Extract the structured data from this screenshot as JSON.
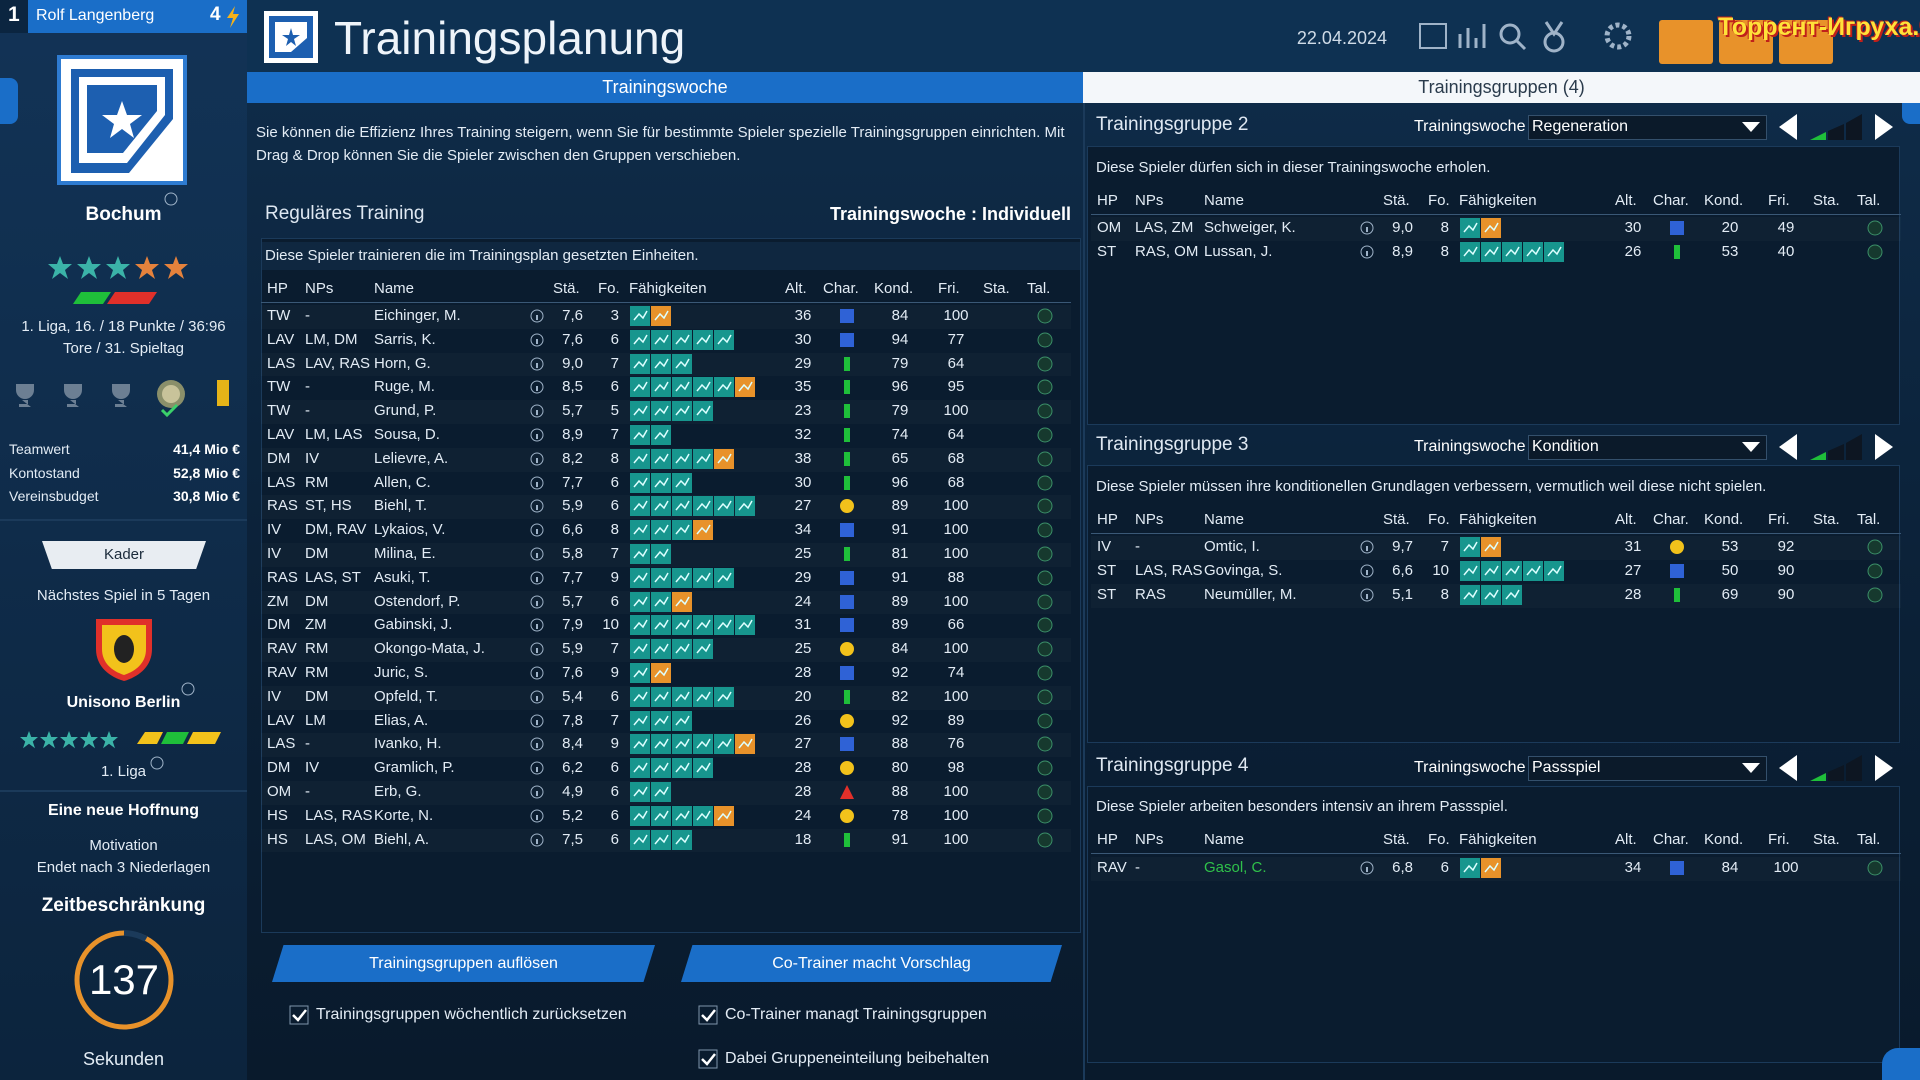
{
  "sidebar": {
    "rank": "1",
    "manager": "Rolf Langenberg",
    "points": "4",
    "club": "Bochum",
    "league_line": "1. Liga, 16. / 18 Punkte / 36:96",
    "league_line2": "Tore / 31. Spieltag",
    "finances": [
      [
        "Teamwert",
        "41,4 Mio €"
      ],
      [
        "Kontostand",
        "52,8 Mio €"
      ],
      [
        "Vereinsbudget",
        "30,8 Mio €"
      ]
    ],
    "squad_button": "Kader",
    "next_match": "Nächstes Spiel in 5 Tagen",
    "opponent": "Unisono Berlin",
    "opponent_league": "1. Liga",
    "goal_title": "Eine neue Hoffnung",
    "goal_label": "Motivation",
    "goal_end": "Endet nach 3 Niederlagen",
    "timer_title": "Zeitbeschränkung",
    "timer_value": 137,
    "timer_unit": "Sekunden"
  },
  "header": {
    "title": "Trainingsplanung",
    "date": "22.04.2024",
    "watermark": "Торрент-Игруха.Орг"
  },
  "tabs": [
    "Trainingswoche",
    "Trainingsgruppen (4)"
  ],
  "columns": [
    "HP",
    "NPs",
    "Name",
    "Stä.",
    "Fo.",
    "Fähigkeiten",
    "Alt.",
    "Char.",
    "Kond.",
    "Fri.",
    "Sta.",
    "Tal."
  ],
  "regular": {
    "intro": "Sie können die Effizienz Ihres Training steigern, wenn Sie für bestimmte Spieler spezielle Trainingsgruppen einrichten. Mit Drag & Drop können Sie die Spieler zwischen den Gruppen verschieben.",
    "title": "Reguläres Training",
    "week_label": "Trainingswoche : Individuell",
    "description": "Diese Spieler trainieren die im Trainingsplan gesetzten Einheiten.",
    "rows": [
      [
        "TW",
        "-",
        "Eichinger, M.",
        "7,6",
        3,
        36,
        84,
        100
      ],
      [
        "LAV",
        "LM, DM",
        "Sarris, K.",
        "7,6",
        6,
        30,
        94,
        77
      ],
      [
        "LAS",
        "LAV, RAS",
        "Horn, G.",
        "9,0",
        7,
        29,
        79,
        64
      ],
      [
        "TW",
        "-",
        "Ruge, M.",
        "8,5",
        6,
        35,
        96,
        95
      ],
      [
        "TW",
        "-",
        "Grund, P.",
        "5,7",
        5,
        23,
        79,
        100
      ],
      [
        "LAV",
        "LM, LAS",
        "Sousa, D.",
        "8,9",
        7,
        32,
        74,
        64
      ],
      [
        "DM",
        "IV",
        "Lelievre, A.",
        "8,2",
        8,
        38,
        65,
        68
      ],
      [
        "LAS",
        "RM",
        "Allen, C.",
        "7,7",
        6,
        30,
        96,
        68
      ],
      [
        "RAS",
        "ST, HS",
        "Biehl, T.",
        "5,9",
        6,
        27,
        89,
        100
      ],
      [
        "IV",
        "DM, RAV",
        "Lykaios, V.",
        "6,6",
        8,
        34,
        91,
        100
      ],
      [
        "IV",
        "DM",
        "Milina, E.",
        "5,8",
        7,
        25,
        81,
        100
      ],
      [
        "RAS",
        "LAS, ST",
        "Asuki, T.",
        "7,7",
        9,
        29,
        91,
        88
      ],
      [
        "ZM",
        "DM",
        "Ostendorf, P.",
        "5,7",
        6,
        24,
        89,
        100
      ],
      [
        "DM",
        "ZM",
        "Gabinski, J.",
        "7,9",
        10,
        31,
        89,
        66
      ],
      [
        "RAV",
        "RM",
        "Okongo-Mata, J.",
        "5,9",
        7,
        25,
        84,
        100
      ],
      [
        "RAV",
        "RM",
        "Juric, S.",
        "7,6",
        9,
        28,
        92,
        74
      ],
      [
        "IV",
        "DM",
        "Opfeld, T.",
        "5,4",
        6,
        20,
        82,
        100
      ],
      [
        "LAV",
        "LM",
        "Elias, A.",
        "7,8",
        7,
        26,
        92,
        89
      ],
      [
        "LAS",
        "-",
        "Ivanko, H.",
        "8,4",
        9,
        27,
        88,
        76
      ],
      [
        "DM",
        "IV",
        "Gramlich, P.",
        "6,2",
        6,
        28,
        80,
        98
      ],
      [
        "OM",
        "-",
        "Erb, G.",
        "4,9",
        6,
        28,
        88,
        100
      ],
      [
        "HS",
        "LAS, RAS",
        "Korte, N.",
        "5,2",
        6,
        24,
        78,
        100
      ],
      [
        "HS",
        "LAS, OM",
        "Biehl, A.",
        "7,5",
        6,
        18,
        91,
        100
      ]
    ],
    "char_colors": [
      "#2f62d6",
      "#2f62d6",
      "#1fbf3a",
      "#1fbf3a",
      "#1fbf3a",
      "#1fbf3a",
      "#1fbf3a",
      "#1fbf3a",
      "#f2c21b",
      "#2f62d6",
      "#1fbf3a",
      "#2f62d6",
      "#2f62d6",
      "#2f62d6",
      "#f2c21b",
      "#2f62d6",
      "#1fbf3a",
      "#f2c21b",
      "#2f62d6",
      "#f2c21b",
      "#e0302a",
      "#f2c21b",
      "#1fbf3a"
    ]
  },
  "buttons": [
    "Trainingsgruppen auflösen",
    "Co-Trainer macht Vorschlag"
  ],
  "checkboxes": [
    "Trainingsgruppen wöchentlich zurücksetzen",
    "Co-Trainer managt Trainingsgruppen",
    "Dabei Gruppeneinteilung beibehalten"
  ],
  "groups": [
    {
      "title": "Trainingsgruppe 2",
      "week_label": "Trainingswoche",
      "week_value": "Regeneration",
      "description": "Diese Spieler dürfen sich in dieser Trainingswoche erholen.",
      "rows": [
        [
          "OM",
          "LAS, ZM",
          "Schweiger, K.",
          "9,0",
          8,
          30,
          20,
          49
        ],
        [
          "ST",
          "RAS, OM",
          "Lussan, J.",
          "8,9",
          8,
          26,
          53,
          40
        ]
      ],
      "char_colors": [
        "#2f62d6",
        "#1fbf3a"
      ]
    },
    {
      "title": "Trainingsgruppe 3",
      "week_label": "Trainingswoche",
      "week_value": "Kondition",
      "description": "Diese Spieler müssen ihre konditionellen Grundlagen verbessern, vermutlich weil diese nicht spielen.",
      "rows": [
        [
          "IV",
          "-",
          "Omtic, I.",
          "9,7",
          7,
          31,
          53,
          92
        ],
        [
          "ST",
          "LAS, RAS",
          "Govinga, S.",
          "6,6",
          10,
          27,
          50,
          90
        ],
        [
          "ST",
          "RAS",
          "Neumüller, M.",
          "5,1",
          8,
          28,
          69,
          90
        ]
      ],
      "char_colors": [
        "#f2c21b",
        "#2f62d6",
        "#1fbf3a"
      ]
    },
    {
      "title": "Trainingsgruppe 4",
      "week_label": "Trainingswoche",
      "week_value": "Passspiel",
      "description": "Diese Spieler arbeiten besonders intensiv an ihrem Passspiel.",
      "rows": [
        [
          "RAV",
          "-",
          "Gasol, C.",
          "6,8",
          6,
          34,
          84,
          100
        ]
      ],
      "char_colors": [
        "#2f62d6"
      ]
    }
  ]
}
